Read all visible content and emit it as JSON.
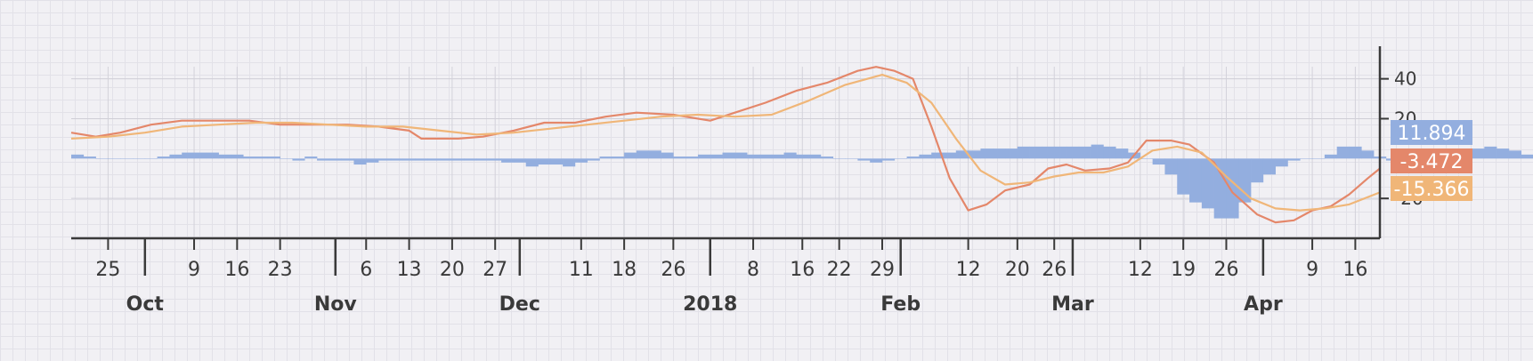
{
  "chart_data": {
    "type": "line",
    "title": "",
    "xlabel": "",
    "ylabel": "",
    "x_range": [
      "2017-09-19",
      "2018-04-20"
    ],
    "ylim": [
      -40,
      55
    ],
    "y_ticks": [
      {
        "value": 40,
        "label": "40"
      },
      {
        "value": 20,
        "label": "20"
      },
      {
        "value": -20,
        "label": "-20"
      }
    ],
    "x_minor_ticks": [
      {
        "date": "2017-09-25",
        "label": "25"
      },
      {
        "date": "2017-10-09",
        "label": "9"
      },
      {
        "date": "2017-10-16",
        "label": "16"
      },
      {
        "date": "2017-10-23",
        "label": "23"
      },
      {
        "date": "2017-11-06",
        "label": "6"
      },
      {
        "date": "2017-11-13",
        "label": "13"
      },
      {
        "date": "2017-11-20",
        "label": "20"
      },
      {
        "date": "2017-11-27",
        "label": "27"
      },
      {
        "date": "2017-12-11",
        "label": "11"
      },
      {
        "date": "2017-12-18",
        "label": "18"
      },
      {
        "date": "2017-12-26",
        "label": "26"
      },
      {
        "date": "2018-01-08",
        "label": "8"
      },
      {
        "date": "2018-01-16",
        "label": "16"
      },
      {
        "date": "2018-01-22",
        "label": "22"
      },
      {
        "date": "2018-01-29",
        "label": "29"
      },
      {
        "date": "2018-02-12",
        "label": "12"
      },
      {
        "date": "2018-02-20",
        "label": "20"
      },
      {
        "date": "2018-02-26",
        "label": "26"
      },
      {
        "date": "2018-03-12",
        "label": "12"
      },
      {
        "date": "2018-03-19",
        "label": "19"
      },
      {
        "date": "2018-03-26",
        "label": "26"
      },
      {
        "date": "2018-04-09",
        "label": "9"
      },
      {
        "date": "2018-04-16",
        "label": "16"
      }
    ],
    "x_major_ticks": [
      {
        "date": "2017-10-01",
        "label": "Oct"
      },
      {
        "date": "2017-11-01",
        "label": "Nov"
      },
      {
        "date": "2017-12-01",
        "label": "Dec"
      },
      {
        "date": "2018-01-01",
        "label": "2018"
      },
      {
        "date": "2018-02-01",
        "label": "Feb"
      },
      {
        "date": "2018-03-01",
        "label": "Mar"
      },
      {
        "date": "2018-04-01",
        "label": "Apr"
      }
    ],
    "grid": true,
    "series": [
      {
        "type": "line",
        "color": "#e4876a",
        "x": [
          "2017-09-19",
          "2017-09-23",
          "2017-09-27",
          "2017-10-02",
          "2017-10-07",
          "2017-10-12",
          "2017-10-18",
          "2017-10-23",
          "2017-10-28",
          "2017-11-03",
          "2017-11-08",
          "2017-11-13",
          "2017-11-15",
          "2017-11-21",
          "2017-11-25",
          "2017-11-30",
          "2017-12-05",
          "2017-12-10",
          "2017-12-15",
          "2017-12-20",
          "2017-12-26",
          "2018-01-01",
          "2018-01-05",
          "2018-01-10",
          "2018-01-15",
          "2018-01-20",
          "2018-01-25",
          "2018-01-28",
          "2018-01-31",
          "2018-02-03",
          "2018-02-06",
          "2018-02-09",
          "2018-02-12",
          "2018-02-15",
          "2018-02-18",
          "2018-02-22",
          "2018-02-25",
          "2018-02-28",
          "2018-03-03",
          "2018-03-07",
          "2018-03-10",
          "2018-03-13",
          "2018-03-17",
          "2018-03-20",
          "2018-03-24",
          "2018-03-27",
          "2018-03-31",
          "2018-04-03",
          "2018-04-06",
          "2018-04-09",
          "2018-04-12",
          "2018-04-15",
          "2018-04-18",
          "2018-04-20"
        ],
        "values": [
          13,
          11,
          13,
          17,
          19,
          19,
          19,
          17,
          17,
          17,
          16,
          14,
          10,
          10,
          11,
          14,
          18,
          18,
          21,
          23,
          22,
          19,
          23,
          28,
          34,
          38,
          44,
          46,
          44,
          40,
          16,
          -10,
          -26,
          -23,
          -16,
          -13,
          -5,
          -3,
          -6,
          -5,
          -2,
          9,
          9,
          7,
          -2,
          -17,
          -28,
          -32,
          -31,
          -26,
          -24,
          -18,
          -10,
          -5
        ]
      },
      {
        "type": "line",
        "color": "#f0b678",
        "x": [
          "2017-09-19",
          "2017-09-25",
          "2017-10-01",
          "2017-10-07",
          "2017-10-13",
          "2017-10-19",
          "2017-10-25",
          "2017-10-31",
          "2017-11-06",
          "2017-11-12",
          "2017-11-18",
          "2017-11-24",
          "2017-11-30",
          "2017-12-06",
          "2017-12-12",
          "2017-12-18",
          "2017-12-24",
          "2017-12-30",
          "2018-01-05",
          "2018-01-11",
          "2018-01-17",
          "2018-01-23",
          "2018-01-29",
          "2018-02-02",
          "2018-02-06",
          "2018-02-10",
          "2018-02-14",
          "2018-02-18",
          "2018-02-22",
          "2018-02-26",
          "2018-03-02",
          "2018-03-06",
          "2018-03-10",
          "2018-03-14",
          "2018-03-18",
          "2018-03-22",
          "2018-03-26",
          "2018-03-30",
          "2018-04-03",
          "2018-04-07",
          "2018-04-11",
          "2018-04-15",
          "2018-04-20"
        ],
        "values": [
          10,
          11,
          13,
          16,
          17,
          18,
          18,
          17,
          16,
          16,
          14,
          12,
          13,
          15,
          17,
          19,
          21,
          22,
          21,
          22,
          29,
          37,
          42,
          38,
          28,
          10,
          -6,
          -13,
          -12,
          -9,
          -7,
          -7,
          -4,
          4,
          6,
          3,
          -9,
          -20,
          -25,
          -26,
          -25,
          -23,
          -17
        ]
      },
      {
        "type": "bar",
        "color": "#93aedf",
        "x_start": "2017-09-19",
        "step_days": 2,
        "values": [
          2,
          1,
          0,
          0,
          0,
          0,
          0,
          1,
          2,
          3,
          3,
          3,
          2,
          2,
          1,
          1,
          1,
          0,
          -1,
          1,
          -1,
          -1,
          -1,
          -3,
          -2,
          -1,
          -1,
          -1,
          -1,
          -1,
          -1,
          -1,
          -1,
          -1,
          -1,
          -2,
          -2,
          -4,
          -3,
          -3,
          -4,
          -2,
          -1,
          1,
          1,
          3,
          4,
          4,
          3,
          1,
          1,
          2,
          2,
          3,
          3,
          2,
          2,
          2,
          3,
          2,
          2,
          1,
          0,
          0,
          -1,
          -2,
          -1,
          0,
          1,
          2,
          3,
          3,
          4,
          4,
          5,
          5,
          5,
          6,
          6,
          6,
          6,
          6,
          6,
          7,
          6,
          5,
          3,
          0,
          -3,
          -8,
          -18,
          -22,
          -25,
          -30,
          -30,
          -22,
          -12,
          -8,
          -4,
          -1,
          0,
          0,
          2,
          6,
          6,
          4,
          1,
          -1,
          0,
          0,
          1,
          1,
          2,
          3,
          5,
          6,
          5,
          4,
          2,
          0,
          -3,
          -7,
          -12,
          -14,
          -14,
          -15,
          -16,
          -14,
          -12,
          -8,
          -5,
          -3,
          -2,
          1,
          2,
          3,
          5,
          6,
          8,
          10,
          11
        ]
      }
    ],
    "end_values": [
      {
        "label": "11.894",
        "color": "#93aedf"
      },
      {
        "label": "-3.472",
        "color": "#e4876a"
      },
      {
        "label": "-15.366",
        "color": "#f0b678"
      }
    ]
  }
}
